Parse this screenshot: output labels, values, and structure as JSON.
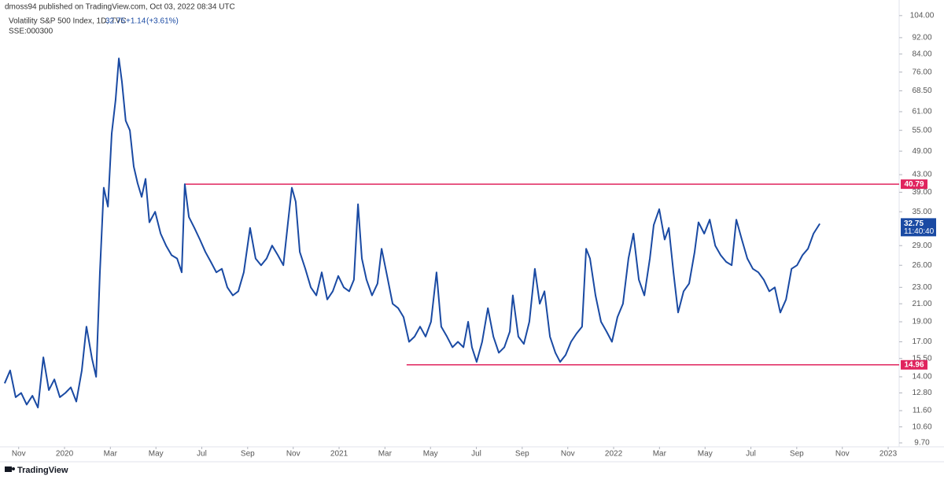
{
  "header": {
    "publisher": "dmoss94 published on TradingView.com, Oct 03, 2022 08:34 UTC",
    "symbol": "Volatility S&P 500 Index, 1D, TVC",
    "change": "+1.14",
    "change_pct": "(+3.61%)",
    "compare": "SSE:000300"
  },
  "footer": {
    "brand": "TradingView"
  },
  "chart_data": {
    "type": "line",
    "log_scale": true,
    "grid": false,
    "x": [
      2019.782,
      2019.802,
      2019.822,
      2019.842,
      2019.862,
      2019.883,
      2019.903,
      2019.923,
      2019.943,
      2019.963,
      2019.983,
      2020.003,
      2020.023,
      2020.043,
      2020.063,
      2020.08,
      2020.1,
      2020.115,
      2020.129,
      2020.143,
      2020.158,
      2020.172,
      2020.186,
      2020.198,
      2020.209,
      2020.223,
      2020.238,
      2020.252,
      2020.266,
      2020.281,
      2020.295,
      2020.309,
      2020.33,
      2020.35,
      2020.37,
      2020.39,
      2020.41,
      2020.427,
      2020.438,
      2020.453,
      2020.473,
      2020.493,
      2020.513,
      2020.533,
      2020.553,
      2020.573,
      2020.593,
      2020.613,
      2020.633,
      2020.653,
      2020.676,
      2020.696,
      2020.716,
      2020.736,
      2020.756,
      2020.777,
      2020.797,
      2020.814,
      2020.828,
      2020.842,
      2020.857,
      2020.877,
      2020.897,
      2020.917,
      2020.937,
      2020.957,
      2020.977,
      2020.997,
      2021.017,
      2021.037,
      2021.054,
      2021.069,
      2021.083,
      2021.1,
      2021.12,
      2021.14,
      2021.155,
      2021.175,
      2021.195,
      2021.215,
      2021.235,
      2021.255,
      2021.275,
      2021.295,
      2021.315,
      2021.335,
      2021.355,
      2021.372,
      2021.393,
      2021.413,
      2021.433,
      2021.453,
      2021.47,
      2021.484,
      2021.501,
      2021.521,
      2021.542,
      2021.562,
      2021.582,
      2021.602,
      2021.622,
      2021.633,
      2021.653,
      2021.673,
      2021.693,
      2021.713,
      2021.731,
      2021.748,
      2021.768,
      2021.788,
      2021.805,
      2021.825,
      2021.845,
      2021.865,
      2021.885,
      2021.9,
      2021.914,
      2021.934,
      2021.954,
      2021.974,
      2021.994,
      2022.014,
      2022.034,
      2022.054,
      2022.072,
      2022.092,
      2022.112,
      2022.132,
      2022.146,
      2022.166,
      2022.186,
      2022.201,
      2022.218,
      2022.235,
      2022.255,
      2022.275,
      2022.295,
      2022.309,
      2022.33,
      2022.35,
      2022.37,
      2022.39,
      2022.41,
      2022.43,
      2022.447,
      2022.467,
      2022.487,
      2022.507,
      2022.527,
      2022.547,
      2022.567,
      2022.587,
      2022.607,
      2022.628,
      2022.648,
      2022.668,
      2022.688,
      2022.708,
      2022.728,
      2022.751
    ],
    "series": [
      {
        "color": "#1a4aa3",
        "values": [
          13.5,
          14.5,
          12.5,
          12.8,
          12.0,
          12.6,
          11.8,
          15.6,
          13.0,
          13.8,
          12.5,
          12.8,
          13.2,
          12.2,
          14.5,
          18.5,
          15.5,
          14.0,
          25.0,
          40.0,
          36.0,
          54.0,
          65.0,
          82.0,
          72.0,
          58.0,
          55.0,
          45.0,
          41.0,
          38.0,
          42.0,
          33.0,
          35.0,
          31.0,
          29.0,
          27.5,
          27.0,
          25.0,
          40.8,
          34.0,
          32.0,
          30.0,
          28.0,
          26.5,
          25.0,
          25.5,
          23.0,
          22.0,
          22.5,
          25.0,
          32.0,
          27.0,
          26.0,
          27.0,
          29.0,
          27.5,
          26.0,
          33.0,
          40.0,
          37.0,
          28.0,
          25.5,
          23.0,
          22.0,
          25.0,
          21.5,
          22.5,
          24.5,
          23.0,
          22.5,
          24.0,
          36.5,
          27.0,
          24.0,
          22.0,
          23.5,
          28.5,
          24.5,
          21.0,
          20.5,
          19.5,
          17.0,
          17.5,
          18.5,
          17.5,
          19.0,
          25.0,
          18.5,
          17.5,
          16.5,
          17.0,
          16.5,
          19.0,
          16.5,
          15.2,
          17.0,
          20.5,
          17.5,
          16.0,
          16.5,
          18.0,
          22.0,
          17.5,
          16.8,
          19.0,
          25.5,
          21.0,
          22.5,
          17.5,
          16.0,
          15.2,
          15.8,
          17.0,
          17.8,
          18.5,
          28.5,
          27.0,
          22.0,
          19.0,
          18.0,
          17.0,
          19.5,
          21.0,
          27.0,
          31.0,
          24.0,
          22.0,
          27.0,
          32.5,
          35.5,
          30.0,
          32.0,
          25.0,
          20.0,
          22.5,
          23.5,
          28.0,
          33.0,
          31.0,
          33.5,
          29.0,
          27.5,
          26.5,
          26.0,
          33.5,
          30.0,
          27.0,
          25.5,
          25.0,
          24.0,
          22.5,
          23.0,
          20.0,
          21.5,
          25.5,
          26.0,
          27.5,
          28.5,
          31.0,
          32.75
        ]
      }
    ],
    "levels": [
      {
        "value": 40.79,
        "x_start": 2020.438,
        "color": "#e0245e"
      },
      {
        "value": 14.96,
        "x_start": 2021.246,
        "color": "#e0245e"
      }
    ],
    "last_value": 32.75,
    "countdown": "11:40:40",
    "xlim": [
      2019.765,
      2023.04
    ],
    "ylim": [
      9.49,
      113.4
    ],
    "xticks": [
      {
        "value": 2019.833,
        "label": "Nov"
      },
      {
        "value": 2020,
        "label": "2020"
      },
      {
        "value": 2020.167,
        "label": "Mar"
      },
      {
        "value": 2020.333,
        "label": "May"
      },
      {
        "value": 2020.5,
        "label": "Jul"
      },
      {
        "value": 2020.667,
        "label": "Sep"
      },
      {
        "value": 2020.833,
        "label": "Nov"
      },
      {
        "value": 2021,
        "label": "2021"
      },
      {
        "value": 2021.167,
        "label": "Mar"
      },
      {
        "value": 2021.333,
        "label": "May"
      },
      {
        "value": 2021.5,
        "label": "Jul"
      },
      {
        "value": 2021.667,
        "label": "Sep"
      },
      {
        "value": 2021.833,
        "label": "Nov"
      },
      {
        "value": 2022,
        "label": "2022"
      },
      {
        "value": 2022.167,
        "label": "Mar"
      },
      {
        "value": 2022.333,
        "label": "May"
      },
      {
        "value": 2022.5,
        "label": "Jul"
      },
      {
        "value": 2022.667,
        "label": "Sep"
      },
      {
        "value": 2022.833,
        "label": "Nov"
      },
      {
        "value": 2023,
        "label": "2023"
      }
    ],
    "yticks": [
      {
        "value": 9.7,
        "label": "9.70"
      },
      {
        "value": 10.6,
        "label": "10.60"
      },
      {
        "value": 11.6,
        "label": "11.60"
      },
      {
        "value": 12.8,
        "label": "12.80"
      },
      {
        "value": 14,
        "label": "14.00"
      },
      {
        "value": 15.5,
        "label": "15.50"
      },
      {
        "value": 17,
        "label": "17.00"
      },
      {
        "value": 19,
        "label": "19.00"
      },
      {
        "value": 21,
        "label": "21.00"
      },
      {
        "value": 23,
        "label": "23.00"
      },
      {
        "value": 26,
        "label": "26.00"
      },
      {
        "value": 29,
        "label": "29.00"
      },
      {
        "value": 35,
        "label": "35.00"
      },
      {
        "value": 39,
        "label": "39.00"
      },
      {
        "value": 43,
        "label": "43.00"
      },
      {
        "value": 49,
        "label": "49.00"
      },
      {
        "value": 55,
        "label": "55.00"
      },
      {
        "value": 61,
        "label": "61.00"
      },
      {
        "value": 68.5,
        "label": "68.50"
      },
      {
        "value": 76,
        "label": "76.00"
      },
      {
        "value": 84,
        "label": "84.00"
      },
      {
        "value": 92,
        "label": "92.00"
      },
      {
        "value": 104,
        "label": "104.00"
      }
    ]
  }
}
